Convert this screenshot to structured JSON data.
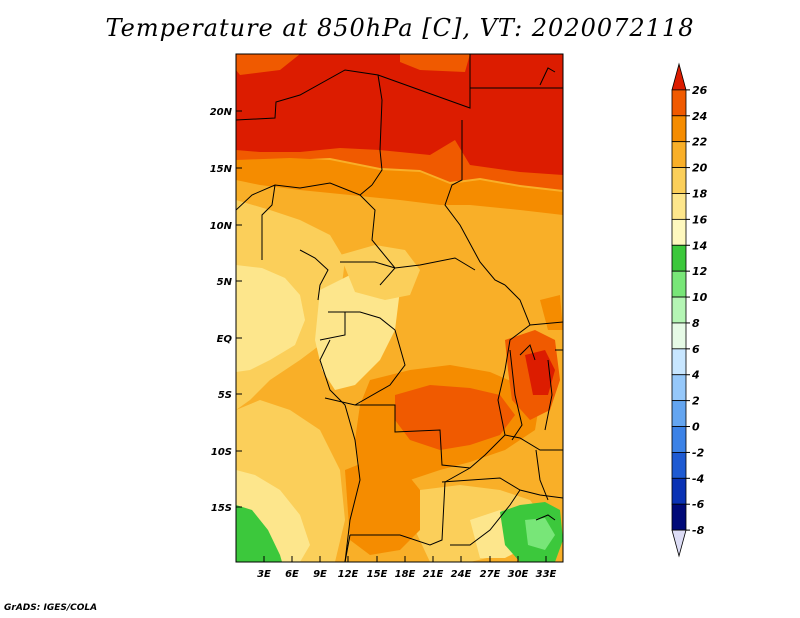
{
  "title": "Temperature at 850hPa [C], VT: 2020072118",
  "credit": "GrADS: IGES/COLA",
  "map": {
    "lat_labels": [
      "20N",
      "15N",
      "10N",
      "5N",
      "EQ",
      "5S",
      "10S",
      "15S"
    ],
    "lon_labels": [
      "3E",
      "6E",
      "9E",
      "12E",
      "15E",
      "18E",
      "21E",
      "24E",
      "27E",
      "30E",
      "33E"
    ]
  },
  "colorbar": {
    "labels": [
      "26",
      "24",
      "22",
      "20",
      "18",
      "16",
      "14",
      "12",
      "10",
      "8",
      "6",
      "4",
      "2",
      "0",
      "-2",
      "-4",
      "-6",
      "-8"
    ],
    "colors": [
      "#dc1c00",
      "#f05a00",
      "#f58c00",
      "#f9af28",
      "#fbcf5a",
      "#fde68c",
      "#fef8be",
      "#3cc83c",
      "#78e678",
      "#b4f5b4",
      "#e6fae6",
      "#c8e6ff",
      "#96c8fa",
      "#64a5f0",
      "#3c82e6",
      "#1e5ad2",
      "#0a32b4",
      "#000a78",
      "#dcdcf5"
    ]
  }
}
